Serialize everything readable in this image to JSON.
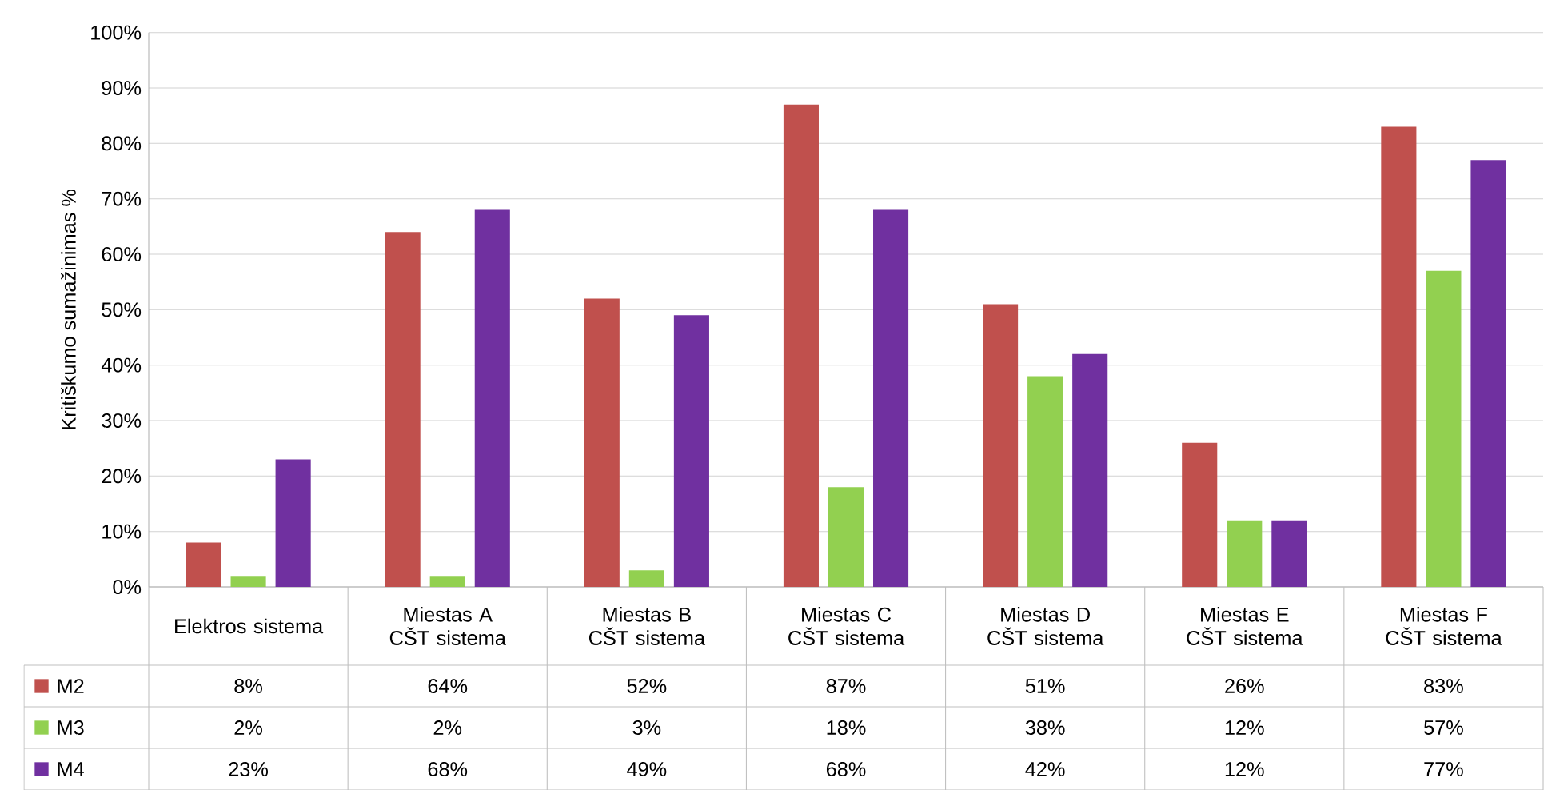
{
  "chart_data": {
    "type": "bar",
    "ylabel": "Kritiškumo sumažinimas %",
    "categories": [
      "Elektros sistema",
      "Miestas A CŠT sistema",
      "Miestas B CŠT sistema",
      "Miestas C CŠT sistema",
      "Miestas D CŠT sistema",
      "Miestas E CŠT sistema",
      "Miestas F CŠT sistema"
    ],
    "series": [
      {
        "name": "M2",
        "color": "#c0504d",
        "values": [
          8,
          64,
          52,
          87,
          51,
          26,
          83
        ],
        "value_labels": [
          "8%",
          "64%",
          "52%",
          "87%",
          "51%",
          "26%",
          "83%"
        ]
      },
      {
        "name": "M3",
        "color": "#92d050",
        "values": [
          2,
          2,
          3,
          18,
          38,
          12,
          57
        ],
        "value_labels": [
          "2%",
          "2%",
          "3%",
          "18%",
          "38%",
          "12%",
          "57%"
        ]
      },
      {
        "name": "M4",
        "color": "#7030a0",
        "values": [
          23,
          68,
          49,
          68,
          42,
          12,
          77
        ],
        "value_labels": [
          "23%",
          "68%",
          "49%",
          "68%",
          "42%",
          "12%",
          "77%"
        ]
      }
    ],
    "ylim": [
      0,
      100
    ],
    "yticks": [
      {
        "value": 0,
        "label": "0%"
      },
      {
        "value": 10,
        "label": "10%"
      },
      {
        "value": 20,
        "label": "20%"
      },
      {
        "value": 30,
        "label": "30%"
      },
      {
        "value": 40,
        "label": "40%"
      },
      {
        "value": 50,
        "label": "50%"
      },
      {
        "value": 60,
        "label": "60%"
      },
      {
        "value": 70,
        "label": "70%"
      },
      {
        "value": 80,
        "label": "80%"
      },
      {
        "value": 90,
        "label": "90%"
      },
      {
        "value": 100,
        "label": "100%"
      }
    ],
    "grid": "y",
    "legend": "bottom"
  }
}
